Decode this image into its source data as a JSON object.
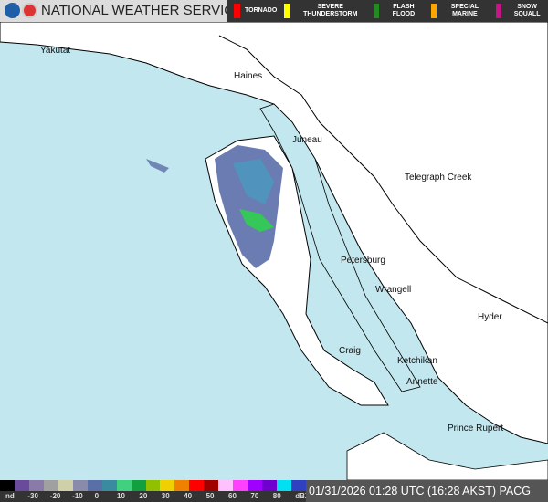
{
  "header": {
    "title": "NATIONAL WEATHER SERVICE",
    "logos": [
      "noaa-logo",
      "nws-logo"
    ]
  },
  "legend": [
    {
      "label": "TORNADO",
      "color": "#ff0000"
    },
    {
      "label": "SEVERE THUNDERSTORM",
      "color": "#ffff00"
    },
    {
      "label": "FLASH FLOOD",
      "color": "#228b22"
    },
    {
      "label": "SPECIAL MARINE",
      "color": "#ffa500"
    },
    {
      "label": "SNOW SQUALL",
      "color": "#c71585"
    }
  ],
  "cities": [
    {
      "name": "Yakutat"
    },
    {
      "name": "Haines"
    },
    {
      "name": "Juneau"
    },
    {
      "name": "Telegraph Creek"
    },
    {
      "name": "Petersburg"
    },
    {
      "name": "Wrangell"
    },
    {
      "name": "Hyder"
    },
    {
      "name": "Craig"
    },
    {
      "name": "Ketchikan"
    },
    {
      "name": "Annette"
    },
    {
      "name": "Prince Rupert"
    }
  ],
  "colors": {
    "water": "#c3e7ef",
    "land": "#ffffff"
  },
  "scale": {
    "ticks": [
      "nd",
      "-30",
      "-20",
      "-10",
      "0",
      "10",
      "20",
      "30",
      "40",
      "50",
      "60",
      "70",
      "80",
      "dBZ"
    ],
    "colors": [
      "#000000",
      "#6a4a9a",
      "#8a7aaa",
      "#a0a0a0",
      "#cfcfa8",
      "#8a8aaa",
      "#5a6ea8",
      "#3a8aa0",
      "#40d080",
      "#10a040",
      "#90c000",
      "#f0d000",
      "#f08000",
      "#ff0000",
      "#a00000",
      "#ffc0ff",
      "#ff40ff",
      "#a000ff",
      "#7000d0",
      "#00e0f0",
      "#3040c0"
    ]
  },
  "timestamp": "01/31/2026 01:28 UTC (16:28 AKST) PACG"
}
